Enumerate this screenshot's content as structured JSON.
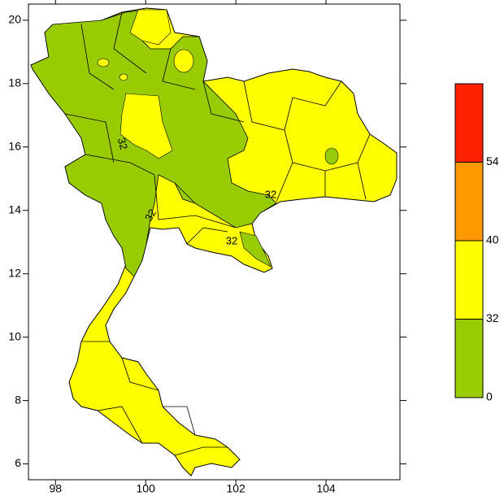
{
  "map": {
    "xlim": [
      97.4,
      105.64
    ],
    "ylim": [
      5.5,
      20.51
    ],
    "xticks": [
      98,
      100,
      102,
      104
    ],
    "yticks": [
      6,
      8,
      10,
      12,
      14,
      16,
      18,
      20
    ],
    "contour_labels": [
      "32",
      "32",
      "32",
      "32"
    ]
  },
  "colorbar": {
    "levels": [
      0,
      32,
      40,
      54
    ],
    "colors": [
      "#99cc00",
      "#ffff00",
      "#ff9900",
      "#ff2200"
    ]
  }
}
